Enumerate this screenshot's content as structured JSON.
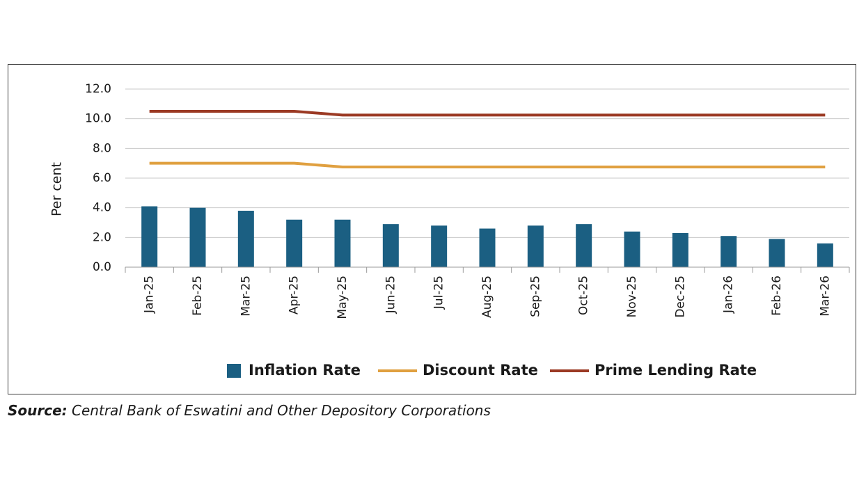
{
  "chart_data": {
    "type": "bar",
    "categories": [
      "Jan-25",
      "Feb-25",
      "Mar-25",
      "Apr-25",
      "May-25",
      "Jun-25",
      "Jul-25",
      "Aug-25",
      "Sep-25",
      "Oct-25",
      "Nov-25",
      "Dec-25",
      "Jan-26",
      "Feb-26",
      "Mar-26"
    ],
    "series": [
      {
        "name": "Inflation Rate",
        "type": "bar",
        "color": "#1b5f82",
        "values": [
          4.1,
          4.0,
          3.8,
          3.2,
          3.2,
          2.9,
          2.8,
          2.6,
          2.8,
          2.9,
          2.4,
          2.3,
          2.1,
          1.9,
          1.6
        ]
      },
      {
        "name": "Discount Rate",
        "type": "line",
        "color": "#e0a040",
        "values": [
          7.0,
          7.0,
          7.0,
          7.0,
          6.75,
          6.75,
          6.75,
          6.75,
          6.75,
          6.75,
          6.75,
          6.75,
          6.75,
          6.75,
          6.75
        ]
      },
      {
        "name": "Prime Lending Rate",
        "type": "line",
        "color": "#9b3a24",
        "values": [
          10.5,
          10.5,
          10.5,
          10.5,
          10.25,
          10.25,
          10.25,
          10.25,
          10.25,
          10.25,
          10.25,
          10.25,
          10.25,
          10.25,
          10.25
        ]
      }
    ],
    "ylabel": "Per cent",
    "ylim": [
      0,
      12
    ],
    "yticks": [
      "0.0",
      "2.0",
      "4.0",
      "6.0",
      "8.0",
      "10.0",
      "12.0"
    ],
    "grid": true,
    "legend": "bottom"
  },
  "source": {
    "label": "Source:",
    "text": " Central Bank of Eswatini and Other Depository Corporations"
  }
}
